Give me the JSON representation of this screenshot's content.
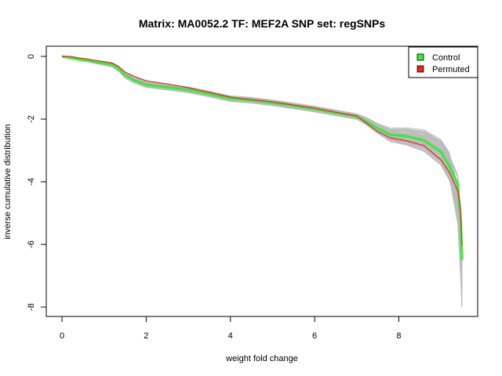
{
  "chart_data": {
    "type": "line",
    "title": "Matrix: MA0052.2 TF: MEF2A SNP set: regSNPs",
    "xlabel": "weight fold change",
    "ylabel": "inverse cumulative distribution",
    "xlim": [
      0,
      9.5
    ],
    "ylim": [
      -8,
      0
    ],
    "xticks": [
      "0",
      "2",
      "4",
      "6",
      "8"
    ],
    "yticks": [
      "0",
      "-2",
      "-4",
      "-6",
      "-8"
    ],
    "grid": false,
    "legend_position": "top-right",
    "colors": {
      "control": "#33ee33",
      "permuted": "#ee2222",
      "background_series": "#bbbbbb"
    },
    "series": [
      {
        "name": "Control",
        "x": [
          0,
          0.2,
          0.4,
          0.6,
          0.8,
          1.0,
          1.2,
          1.35,
          1.5,
          1.7,
          2.0,
          2.5,
          3.0,
          3.5,
          4.0,
          4.5,
          5.0,
          5.5,
          6.0,
          6.5,
          7.0,
          7.2,
          7.5,
          7.8,
          8.2,
          8.6,
          9.0,
          9.2,
          9.4,
          9.47,
          9.5
        ],
        "y": [
          0,
          -0.05,
          -0.1,
          -0.13,
          -0.18,
          -0.22,
          -0.27,
          -0.4,
          -0.6,
          -0.75,
          -0.9,
          -0.98,
          -1.07,
          -1.2,
          -1.35,
          -1.4,
          -1.48,
          -1.58,
          -1.68,
          -1.8,
          -1.92,
          -2.05,
          -2.3,
          -2.5,
          -2.55,
          -2.68,
          -3.05,
          -3.5,
          -4.1,
          -5.2,
          -6.5
        ]
      },
      {
        "name": "Permuted",
        "x": [
          0,
          0.2,
          0.4,
          0.6,
          0.8,
          1.0,
          1.2,
          1.35,
          1.5,
          1.7,
          2.0,
          2.5,
          3.0,
          3.5,
          4.0,
          4.5,
          5.0,
          5.5,
          6.0,
          6.5,
          7.0,
          7.2,
          7.5,
          7.8,
          8.2,
          8.6,
          9.0,
          9.2,
          9.4,
          9.47,
          9.5
        ],
        "y": [
          0,
          0,
          -0.05,
          -0.08,
          -0.13,
          -0.17,
          -0.22,
          -0.33,
          -0.5,
          -0.63,
          -0.78,
          -0.88,
          -1.0,
          -1.15,
          -1.3,
          -1.38,
          -1.45,
          -1.55,
          -1.65,
          -1.78,
          -1.9,
          -2.1,
          -2.4,
          -2.6,
          -2.7,
          -2.85,
          -3.3,
          -3.7,
          -4.3,
          -4.9,
          -6.05
        ]
      }
    ]
  }
}
